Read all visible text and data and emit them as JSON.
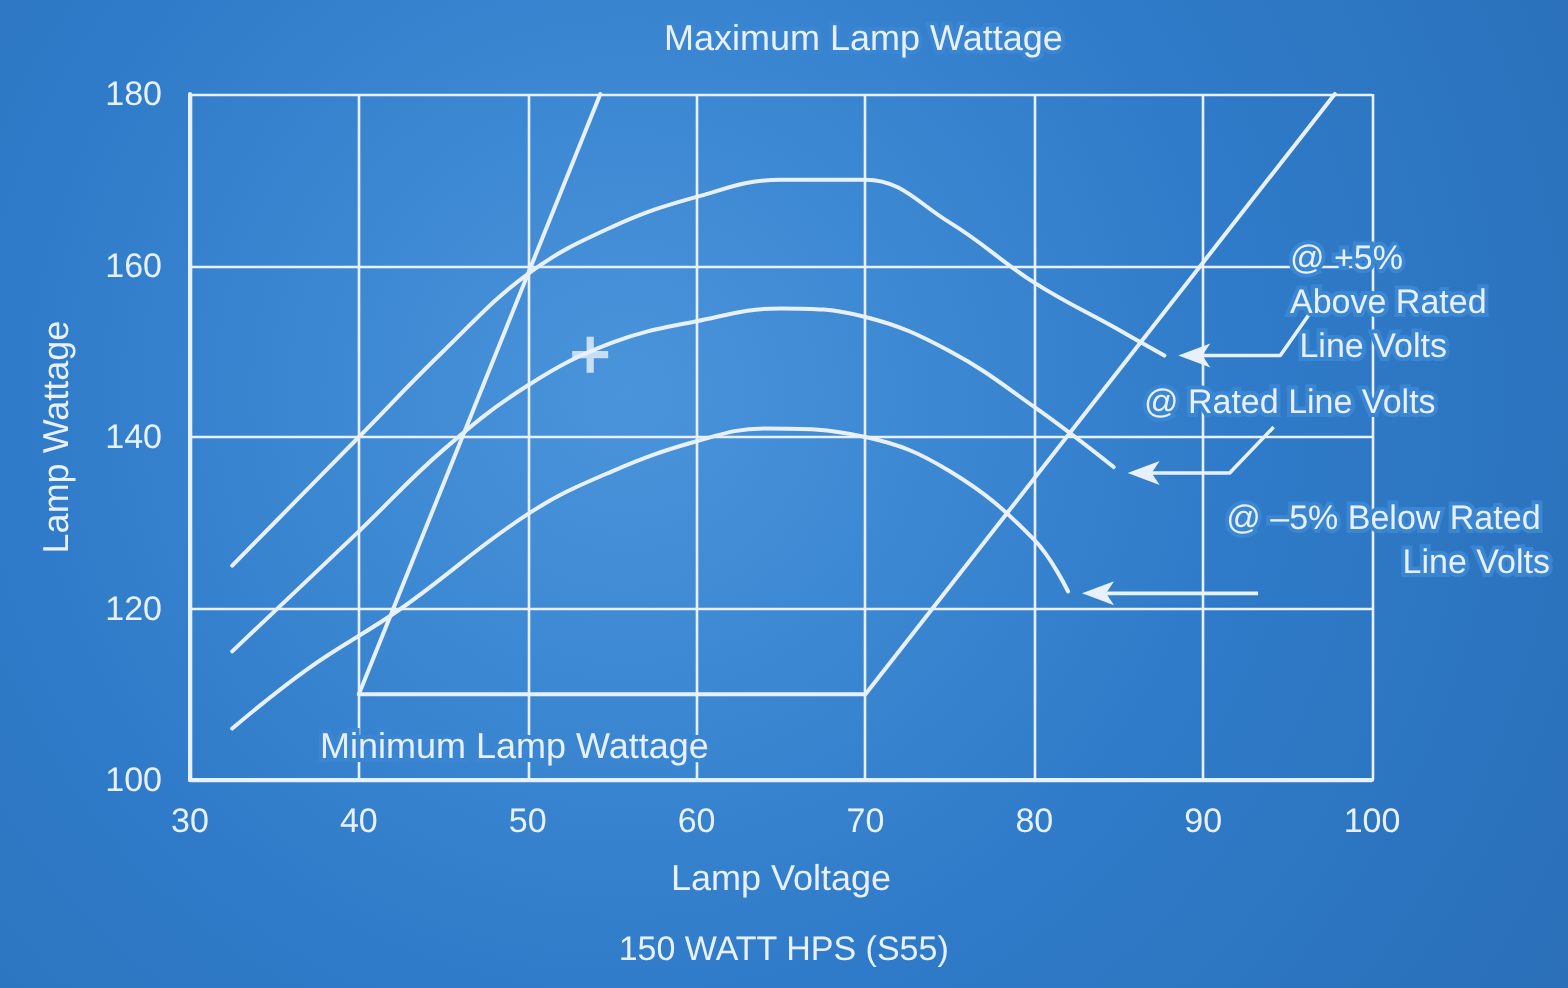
{
  "chart_data": {
    "type": "line",
    "xlabel": "Lamp Voltage",
    "subtitle": "150 WATT HPS (S55)",
    "ylabel": "Lamp Wattage",
    "xlim": [
      30,
      100
    ],
    "xticks": [
      30,
      40,
      50,
      60,
      70,
      80,
      90,
      100
    ],
    "ylim": [
      100,
      180
    ],
    "yticks": [
      100,
      120,
      140,
      160,
      180
    ],
    "grid": true,
    "legend": "right",
    "marker": "none",
    "line_style": "solid",
    "annotations": [
      "Maximum Lamp Wattage",
      "Minimum Lamp Wattage"
    ],
    "series": [
      {
        "name": "@ +5% Above Rated Line Volts",
        "color": "#e8f1fb",
        "x": [
          32.5,
          35,
          40,
          45,
          50,
          55,
          60,
          65,
          70,
          75,
          80,
          85,
          87.7
        ],
        "values": [
          125,
          130,
          140,
          150,
          159,
          164.5,
          168,
          170,
          170,
          165,
          158,
          152.5,
          149.5
        ]
      },
      {
        "name": "@ Rated Line Volts",
        "color": "#e8f1fb",
        "x": [
          32.5,
          40,
          45,
          50,
          55,
          60,
          65,
          70,
          75,
          80,
          84.7
        ],
        "values": [
          115,
          129,
          138.5,
          146,
          151,
          153.5,
          155,
          154,
          150,
          143.5,
          136.5
        ]
      },
      {
        "name": "@ –5% Below Rated Line Volts",
        "color": "#e8f1fb",
        "x": [
          32.5,
          37,
          42.5,
          50,
          55,
          60,
          64,
          70,
          75,
          80,
          82
        ],
        "values": [
          106,
          113,
          120,
          131,
          136,
          139.5,
          141,
          140,
          136,
          128,
          122
        ]
      },
      {
        "color": "#e8f1fb",
        "x": [
          40,
          54.3
        ],
        "values": [
          110,
          180
        ]
      },
      {
        "color": "#e8f1fb",
        "x": [
          40,
          70,
          97.8
        ],
        "values": [
          110,
          110,
          180
        ]
      },
      {
        "type": "scatter",
        "marker": "cross",
        "color": "#e8f1fb",
        "x": [
          53.7
        ],
        "values": [
          149.6
        ]
      }
    ]
  }
}
